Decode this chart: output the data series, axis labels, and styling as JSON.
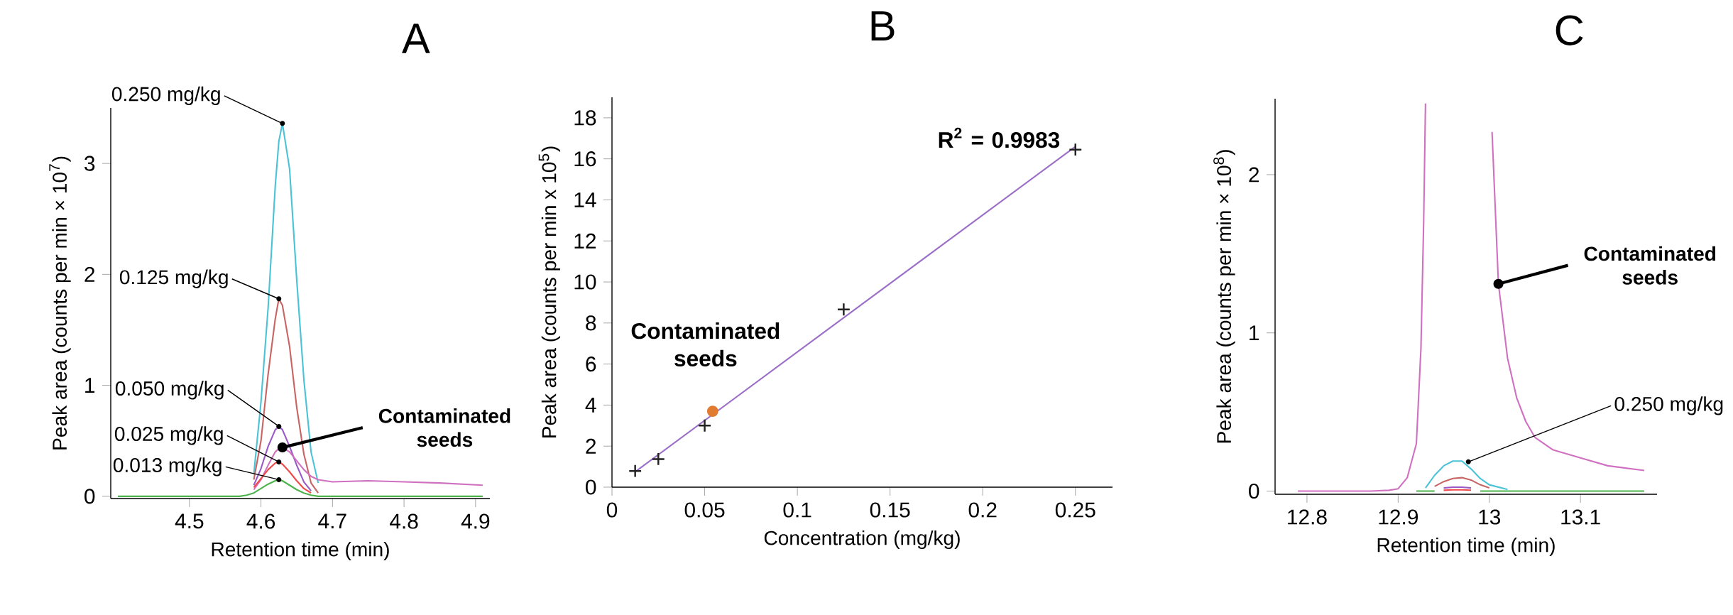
{
  "chart_data": [
    {
      "type": "line",
      "title": "A",
      "xlabel": "Retention time (min)",
      "ylabel": "Peak area (counts per min × 10$^{7}$)",
      "x": [
        4.4,
        4.45,
        4.5,
        4.55,
        4.57,
        4.58,
        4.59,
        4.6,
        4.61,
        4.62,
        4.625,
        4.63,
        4.64,
        4.65,
        4.66,
        4.67,
        4.68,
        4.69,
        4.7,
        4.75,
        4.8,
        4.85,
        4.91
      ],
      "series": [
        {
          "color": "#4bc3d6",
          "x": [
            4.59,
            4.6,
            4.61,
            4.62,
            4.625,
            4.63,
            4.64,
            4.65,
            4.66,
            4.67,
            4.68
          ],
          "values": [
            0.2,
            0.85,
            1.7,
            2.8,
            3.2,
            3.36,
            2.95,
            1.95,
            1.05,
            0.4,
            0.12
          ]
        },
        {
          "color": "#c86464",
          "x": [
            4.59,
            4.6,
            4.61,
            4.62,
            4.625,
            4.63,
            4.64,
            4.65,
            4.66,
            4.67,
            4.68
          ],
          "values": [
            0.15,
            0.5,
            1.1,
            1.6,
            1.78,
            1.72,
            1.35,
            0.8,
            0.38,
            0.12,
            0.03
          ]
        },
        {
          "color": "#9b59c8",
          "x": [
            4.59,
            4.6,
            4.61,
            4.62,
            4.625,
            4.63,
            4.64,
            4.65,
            4.66,
            4.67
          ],
          "values": [
            0.1,
            0.25,
            0.45,
            0.6,
            0.63,
            0.6,
            0.45,
            0.28,
            0.13,
            0.05
          ]
        },
        {
          "color": "#d070c0",
          "x": [
            4.59,
            4.6,
            4.61,
            4.62,
            4.625,
            4.63,
            4.64,
            4.65,
            4.66,
            4.67,
            4.68,
            4.69,
            4.7,
            4.75,
            4.8,
            4.85,
            4.91
          ],
          "values": [
            0.06,
            0.15,
            0.28,
            0.4,
            0.43,
            0.44,
            0.4,
            0.32,
            0.24,
            0.18,
            0.15,
            0.14,
            0.13,
            0.14,
            0.13,
            0.12,
            0.1
          ]
        },
        {
          "color": "#ef4a4a",
          "x": [
            4.59,
            4.6,
            4.61,
            4.62,
            4.625,
            4.63,
            4.64,
            4.65,
            4.66,
            4.67
          ],
          "values": [
            0.08,
            0.16,
            0.24,
            0.3,
            0.31,
            0.29,
            0.22,
            0.14,
            0.07,
            0.03
          ]
        },
        {
          "color": "#4db34d",
          "values": [
            0,
            0,
            0,
            0,
            0,
            0.01,
            0.03,
            0.07,
            0.11,
            0.14,
            0.15,
            0.14,
            0.1,
            0.06,
            0.03,
            0.01,
            0,
            0,
            0,
            0,
            0,
            0,
            0
          ]
        }
      ],
      "xlim": [
        4.39,
        4.92
      ],
      "ylim": [
        -0.02,
        3.5
      ],
      "xticks": [
        4.5,
        4.6,
        4.7,
        4.8,
        4.9
      ],
      "yticks": [
        0,
        1,
        2,
        3
      ],
      "annotations": [
        {
          "text": "0.250 mg/kg",
          "x": 4.63,
          "y": 3.36
        },
        {
          "text": "0.125 mg/kg",
          "x": 4.625,
          "y": 1.78
        },
        {
          "text": "0.050 mg/kg",
          "x": 4.625,
          "y": 0.63
        },
        {
          "text": "Contaminated seeds",
          "x": 4.63,
          "y": 0.44
        },
        {
          "text": "0.025 mg/kg",
          "x": 4.625,
          "y": 0.31
        },
        {
          "text": "0.013 mg/kg",
          "x": 4.625,
          "y": 0.15
        }
      ]
    },
    {
      "type": "scatter",
      "title": "B",
      "xlabel": "Concentration (mg/kg)",
      "ylabel": "Peak area (counts per min x 10$^{5}$)",
      "series": [
        {
          "color": "#222222",
          "marker": "cross",
          "x": [
            0.0125,
            0.025,
            0.05,
            0.125,
            0.25
          ],
          "values": [
            0.79,
            1.37,
            3.0,
            8.66,
            16.45
          ]
        },
        {
          "type": "line",
          "color": "#9b6fc8",
          "x": [
            0.0125,
            0.25
          ],
          "values": [
            0.75,
            16.6
          ]
        },
        {
          "color": "#e07b30",
          "marker": "circle",
          "x": [
            0.0543
          ],
          "values": [
            3.7
          ]
        }
      ],
      "xlim": [
        0,
        0.27
      ],
      "ylim": [
        0,
        19
      ],
      "xticks": [
        0,
        0.05,
        0.1,
        0.15,
        0.2,
        0.25
      ],
      "yticks": [
        0,
        2,
        4,
        6,
        8,
        10,
        12,
        14,
        16,
        18
      ],
      "annotations": [
        "R$^{2}$ = 0.9983",
        "Contaminated seeds"
      ]
    },
    {
      "type": "line",
      "title": "C",
      "xlabel": "Retention time (min)",
      "ylabel": "Peak area (counts per min × 10$^{8}$)",
      "x": [
        12.92,
        12.93,
        12.94,
        12.95,
        12.96,
        12.97,
        12.98,
        12.99,
        13.0,
        13.02,
        13.05,
        13.1,
        13.17
      ],
      "series": [
        {
          "color": "#4db34d",
          "values": [
            0,
            0,
            0,
            null,
            null,
            null,
            null,
            0,
            0,
            0,
            0,
            0,
            0
          ]
        },
        {
          "color": "#ef4a4a",
          "x": [
            12.95,
            12.96,
            12.97,
            12.98
          ],
          "values": [
            0.005,
            0.008,
            0.008,
            0.006
          ]
        },
        {
          "color": "#9b59c8",
          "x": [
            12.95,
            12.96,
            12.97,
            12.98
          ],
          "values": [
            0.02,
            0.025,
            0.025,
            0.02
          ]
        },
        {
          "color": "#c86464",
          "x": [
            12.94,
            12.95,
            12.96,
            12.97,
            12.98,
            12.99,
            13.0
          ],
          "values": [
            0.03,
            0.06,
            0.08,
            0.085,
            0.07,
            0.04,
            0.02
          ]
        },
        {
          "color": "#4bc3d6",
          "x": [
            12.93,
            12.94,
            12.95,
            12.96,
            12.97,
            12.98,
            12.99,
            13.0,
            13.02
          ],
          "values": [
            0.02,
            0.1,
            0.16,
            0.19,
            0.19,
            0.14,
            0.08,
            0.04,
            0.01
          ]
        },
        {
          "color": "#d070c0",
          "x": [
            12.79,
            12.87,
            12.89,
            12.9,
            12.91,
            12.92,
            12.925,
            12.928,
            12.93,
            12.96,
            13.003,
            13.01,
            13.02,
            13.03,
            13.04,
            13.05,
            13.07,
            13.1,
            13.13,
            13.17
          ],
          "values": [
            0,
            0,
            0.005,
            0.015,
            0.085,
            0.3,
            0.9,
            1.7,
            2.45,
            null,
            2.27,
            1.31,
            0.84,
            0.59,
            0.44,
            0.34,
            0.26,
            0.21,
            0.16,
            0.13
          ]
        }
      ],
      "xlim": [
        12.765,
        13.184
      ],
      "ylim": [
        -0.02,
        2.48
      ],
      "xticks": [
        12.8,
        12.9,
        13,
        13.1
      ],
      "yticks": [
        0,
        1,
        2
      ],
      "annotations": [
        {
          "text": "Contaminated seeds",
          "x": 13.01,
          "y": 1.31
        },
        {
          "text": "0.250 mg/kg",
          "x": 12.977,
          "y": 0.185
        }
      ]
    }
  ]
}
